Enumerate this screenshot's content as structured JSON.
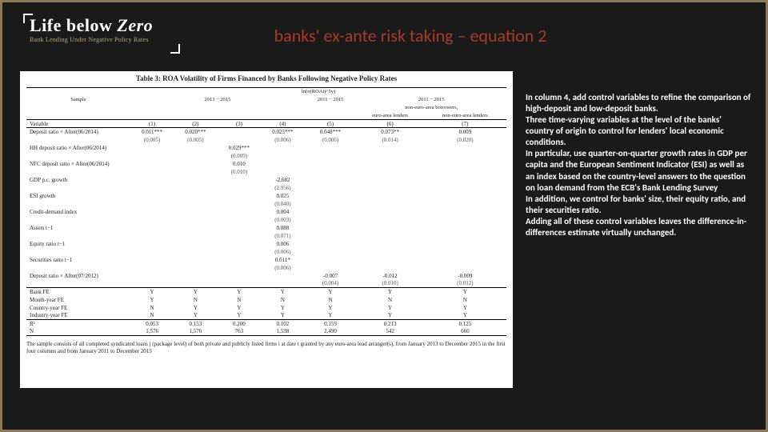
{
  "logo": {
    "main_a": "Life below ",
    "main_b": "Zero",
    "sub": "Bank Lending Under Negative Policy Rates"
  },
  "title": "banks' ex-ante risk taking – equation 2",
  "table": {
    "title": "Table 3: ROA Volatility of Firms Financed by Banks Following Negative Policy Rates",
    "dep_var": "ln(σ(ROAi)^5y)",
    "sample_a": "2013 − 2015",
    "sample_b": "2011 − 2015",
    "sample_c": "2011 − 2015",
    "subhdr_a": "non-euro-area borrowers,",
    "subhdr_b": "euro-area lenders",
    "subhdr_c": "non-euro-area lenders",
    "col_nums": [
      "(1)",
      "(2)",
      "(3)",
      "(4)",
      "(5)",
      "(6)",
      "(7)"
    ],
    "rows": [
      {
        "label": "Deposit ratio × After(06/2014)",
        "v": [
          "0.011***",
          "0.020***",
          "",
          "0.025***",
          "0.048***",
          "0.073**",
          "0.009"
        ],
        "se": [
          "(0.005)",
          "(0.005)",
          "",
          "(0.006)",
          "(0.006)",
          "(0.014)",
          "(0.020)"
        ]
      },
      {
        "label": "HH deposit ratio × After(06/2014)",
        "v": [
          "",
          "",
          "0.029***",
          "",
          "",
          "",
          ""
        ],
        "se": [
          "",
          "",
          "(0.009)",
          "",
          "",
          "",
          ""
        ]
      },
      {
        "label": "NFC deposit ratio × After(06/2014)",
        "v": [
          "",
          "",
          "0.010",
          "",
          "",
          "",
          ""
        ],
        "se": [
          "",
          "",
          "(0.010)",
          "",
          "",
          "",
          ""
        ]
      },
      {
        "label": "GDP p.c. growth",
        "v": [
          "",
          "",
          "",
          "-2.682",
          "",
          "",
          ""
        ],
        "se": [
          "",
          "",
          "",
          "(2.956)",
          "",
          "",
          ""
        ]
      },
      {
        "label": "ESI growth",
        "v": [
          "",
          "",
          "",
          "0.025",
          "",
          "",
          ""
        ],
        "se": [
          "",
          "",
          "",
          "(0.040)",
          "",
          "",
          ""
        ]
      },
      {
        "label": "Credit-demand index",
        "v": [
          "",
          "",
          "",
          "0.004",
          "",
          "",
          ""
        ],
        "se": [
          "",
          "",
          "",
          "(0.003)",
          "",
          "",
          ""
        ]
      },
      {
        "label": "Assets t−1",
        "v": [
          "",
          "",
          "",
          "0.088",
          "",
          "",
          ""
        ],
        "se": [
          "",
          "",
          "",
          "(0.071)",
          "",
          "",
          ""
        ]
      },
      {
        "label": "Equity ratio t−1",
        "v": [
          "",
          "",
          "",
          "0.006",
          "",
          "",
          ""
        ],
        "se": [
          "",
          "",
          "",
          "(0.006)",
          "",
          "",
          ""
        ]
      },
      {
        "label": "Securities ratio t−1",
        "v": [
          "",
          "",
          "",
          "0.011*",
          "",
          "",
          ""
        ],
        "se": [
          "",
          "",
          "",
          "(0.006)",
          "",
          "",
          ""
        ]
      },
      {
        "label": "Deposit ratio × After(07/2012)",
        "v": [
          "",
          "",
          "",
          "",
          "-0.007",
          "-0.012",
          "-0.009"
        ],
        "se": [
          "",
          "",
          "",
          "",
          "(0.004)",
          "(0.010)",
          "(0.012)"
        ]
      }
    ],
    "fe": [
      {
        "label": "Bank FE",
        "v": [
          "Y",
          "Y",
          "Y",
          "Y",
          "Y",
          "Y",
          "Y"
        ]
      },
      {
        "label": "Month-year FE",
        "v": [
          "Y",
          "N",
          "N",
          "N",
          "N",
          "N",
          "N"
        ]
      },
      {
        "label": "Country-year FE",
        "v": [
          "N",
          "Y",
          "Y",
          "Y",
          "Y",
          "Y",
          "Y"
        ]
      },
      {
        "label": "Industry-year FE",
        "v": [
          "N",
          "Y",
          "Y",
          "Y",
          "Y",
          "Y",
          "Y"
        ]
      }
    ],
    "stats": [
      {
        "label": "R²",
        "v": [
          "0.053",
          "0.153",
          "0.200",
          "0.102",
          "0.159",
          "0.213",
          "0.125"
        ]
      },
      {
        "label": "N",
        "v": [
          "1,576",
          "1,576",
          "763",
          "1,538",
          "2,490",
          "542",
          "666"
        ]
      }
    ],
    "caption": "The sample consists of all completed syndicated loans j (package level) of both private and publicly listed firms i at date t granted by any euro-area lead arranger(s), from January 2013 to December 2015 in the first four columns and from January 2011 to December 2015"
  },
  "notes": {
    "p1": "In column 4, add control variables to refine the comparison of high-deposit and low-deposit banks.",
    "p2": "Three time-varying variables at the level of the banks' country of origin to control for lenders' local economic conditions.",
    "p3": "In particular, use quarter-on-quarter growth rates in GDP per capita and the European Sentiment Indicator (ESI) as well as an index based on the country-level answers to the question on loan demand from the ECB's Bank Lending Survey",
    "p4": " In addition, we control for banks' size, their equity ratio, and their securities ratio.",
    "p5": "Adding all of these control variables leaves the difference-in-differences estimate virtually unchanged."
  }
}
